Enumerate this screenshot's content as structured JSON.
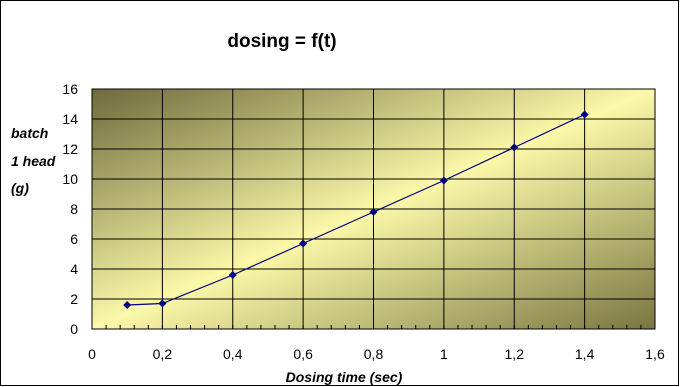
{
  "chart_data": {
    "type": "line",
    "title": "dosing = f(t)",
    "xlabel": "Dosing time (sec)",
    "ylabel_lines": [
      "batch",
      "1 head",
      "(g)"
    ],
    "xlim": [
      0,
      1.6
    ],
    "ylim": [
      0,
      16
    ],
    "x_ticks": [
      "0",
      "0,2",
      "0,4",
      "0,6",
      "0,8",
      "1",
      "1,2",
      "1,4",
      "1,6"
    ],
    "y_ticks": [
      "0",
      "2",
      "4",
      "6",
      "8",
      "10",
      "12",
      "14",
      "16"
    ],
    "grid": true,
    "legend": "none",
    "series": [
      {
        "x": [
          0.1,
          0.2,
          0.4,
          0.6,
          0.8,
          1.0,
          1.2,
          1.4
        ],
        "y": [
          1.6,
          1.7,
          3.6,
          5.7,
          7.8,
          9.9,
          12.1,
          14.3
        ],
        "color": "#000080"
      }
    ],
    "plot_gradient": [
      "#6e6a3c",
      "#fbf8a8"
    ]
  }
}
